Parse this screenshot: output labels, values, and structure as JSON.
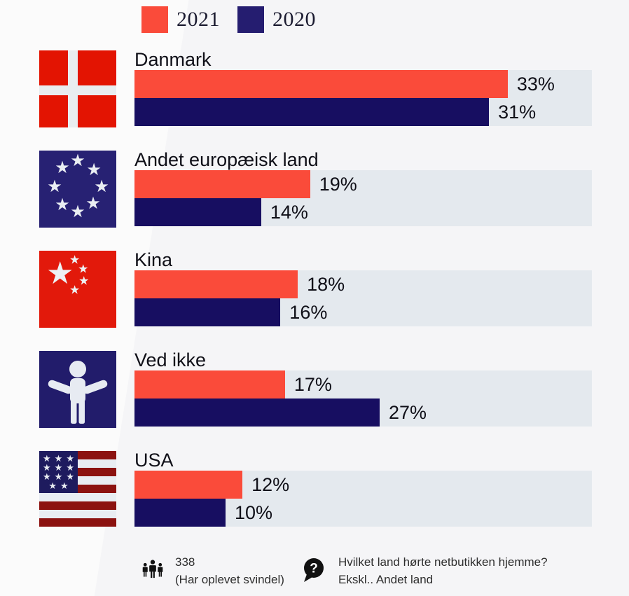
{
  "legend": {
    "items": [
      {
        "label": "2021",
        "color": "#fa4b3a"
      },
      {
        "label": "2020",
        "color": "#251d70"
      }
    ]
  },
  "chart_data": {
    "type": "bar",
    "orientation": "horizontal",
    "value_unit": "%",
    "grid": false,
    "legend_position": "top",
    "categories": [
      "Danmark",
      "Andet europæisk land",
      "Kina",
      "Ved ikke",
      "USA"
    ],
    "series": [
      {
        "name": "2021",
        "color": "#fa4b3a",
        "values": [
          33,
          19,
          18,
          17,
          12
        ]
      },
      {
        "name": "2020",
        "color": "#170e61",
        "values": [
          31,
          14,
          16,
          27,
          10
        ]
      }
    ],
    "rows": [
      {
        "label": "Danmark",
        "icon": "denmark-flag-icon",
        "v2021": "33%",
        "v2020": "31%",
        "w2021": 81.6,
        "w2020": 77.5
      },
      {
        "label": "Andet europæisk land",
        "icon": "eu-flag-icon",
        "v2021": "19%",
        "v2020": "14%",
        "w2021": 38.4,
        "w2020": 27.7
      },
      {
        "label": "Kina",
        "icon": "china-flag-icon",
        "v2021": "18%",
        "v2020": "16%",
        "w2021": 35.7,
        "w2020": 31.9
      },
      {
        "label": "Ved ikke",
        "icon": "person-shrug-icon",
        "v2021": "17%",
        "v2020": "27%",
        "w2021": 32.9,
        "w2020": 53.6
      },
      {
        "label": "USA",
        "icon": "usa-flag-icon",
        "v2021": "12%",
        "v2020": "10%",
        "w2021": 23.6,
        "w2020": 19.9
      }
    ]
  },
  "footer": {
    "sample": {
      "icon": "people-icon",
      "value": "338",
      "note": "(Har oplevet svindel)"
    },
    "question": {
      "icon": "question-bubble-icon",
      "line1": "Hvilket land hørte netbutikken hjemme?",
      "line2": "Ekskl.. Andet land"
    }
  },
  "colors": {
    "background": "#fbfbfb",
    "track": "#e4e9ee",
    "bar_2021": "#fa4b3a",
    "bar_2020": "#170e61",
    "flag_red": "#e31402",
    "flag_navy": "#272173",
    "us_stripe_red": "#8c1210"
  }
}
